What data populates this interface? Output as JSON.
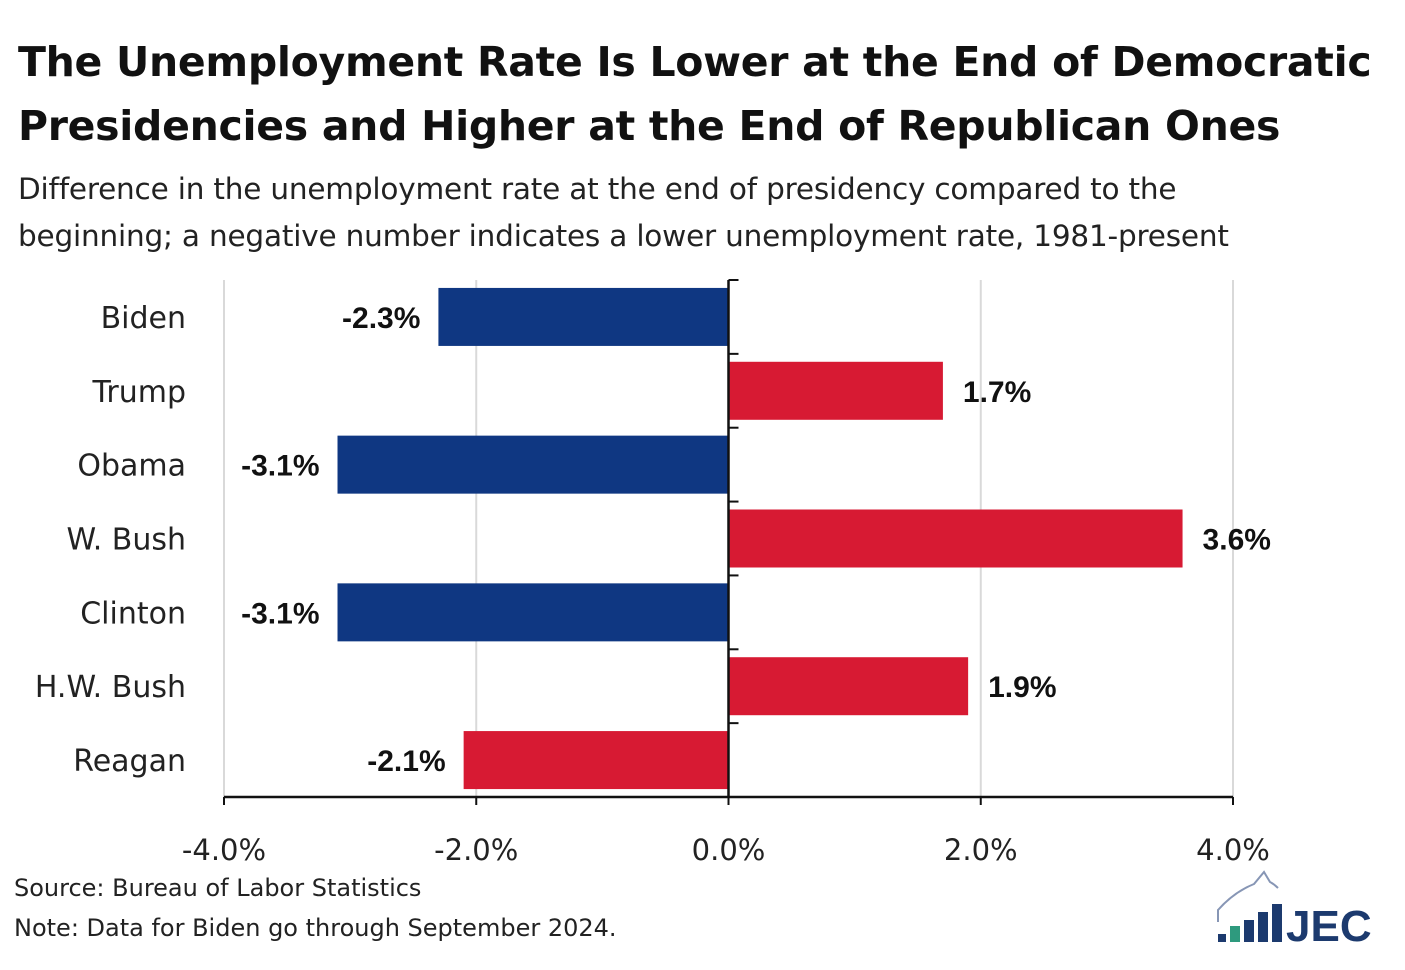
{
  "title": "The Unemployment Rate Is Lower at the End of Democratic Presidencies and Higher at the End of Republican Ones",
  "title_lines": [
    "The Unemployment Rate Is Lower at the End of Democratic",
    "Presidencies and Higher at the End of Republican Ones"
  ],
  "subtitle_lines": [
    "Difference in the unemployment rate at the end of presidency compared to the",
    "beginning; a negative number indicates a lower unemployment rate, 1981-present"
  ],
  "source": "Source: Bureau of Labor Statistics",
  "note": "Note: Data for Biden go through September 2024.",
  "logo_text": "JEC",
  "colors": {
    "democratic": "#0f3782",
    "republican": "#d71a33",
    "grid": "#d9d9d9"
  },
  "chart_data": {
    "type": "bar",
    "orientation": "horizontal",
    "categories": [
      "Biden",
      "Trump",
      "Obama",
      "W. Bush",
      "Clinton",
      "H.W. Bush",
      "Reagan"
    ],
    "values": [
      -2.3,
      1.7,
      -3.1,
      3.6,
      -3.1,
      1.9,
      -2.1
    ],
    "data_labels": [
      "-2.3%",
      "1.7%",
      "-3.1%",
      "3.6%",
      "-3.1%",
      "1.9%",
      "-2.1%"
    ],
    "party": [
      "democratic",
      "republican",
      "democratic",
      "republican",
      "democratic",
      "republican",
      "republican"
    ],
    "xlim": [
      -4.0,
      4.0
    ],
    "xticks": [
      -4.0,
      -2.0,
      0.0,
      2.0,
      4.0
    ],
    "xtick_labels": [
      "-4.0%",
      "-2.0%",
      "0.0%",
      "2.0%",
      "4.0%"
    ],
    "grid": true,
    "xlabel": "",
    "ylabel": ""
  }
}
